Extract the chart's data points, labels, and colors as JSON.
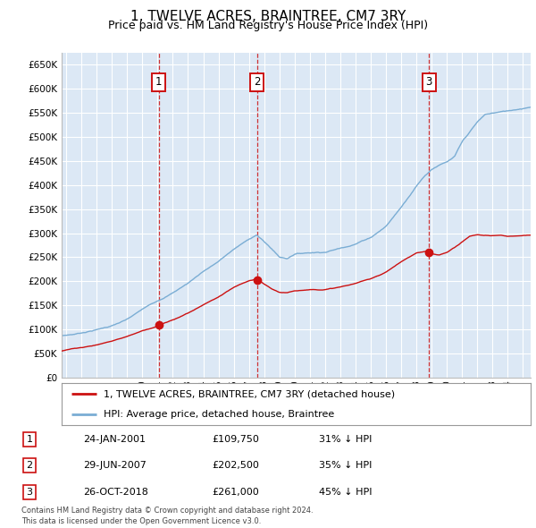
{
  "title": "1, TWELVE ACRES, BRAINTREE, CM7 3RY",
  "subtitle": "Price paid vs. HM Land Registry's House Price Index (HPI)",
  "title_fontsize": 11,
  "subtitle_fontsize": 9,
  "background_color": "#ffffff",
  "plot_bg_color": "#dce8f5",
  "grid_color": "#ffffff",
  "hpi_color": "#7aadd4",
  "price_color": "#cc1111",
  "sale1_year": 2001.07,
  "sale1_price": 109750,
  "sale2_year": 2007.54,
  "sale2_price": 202500,
  "sale3_year": 2018.82,
  "sale3_price": 261000,
  "legend_line1": "1, TWELVE ACRES, BRAINTREE, CM7 3RY (detached house)",
  "legend_line2": "HPI: Average price, detached house, Braintree",
  "table_rows": [
    [
      "1",
      "24-JAN-2001",
      "£109,750",
      "31% ↓ HPI"
    ],
    [
      "2",
      "29-JUN-2007",
      "£202,500",
      "35% ↓ HPI"
    ],
    [
      "3",
      "26-OCT-2018",
      "£261,000",
      "45% ↓ HPI"
    ]
  ],
  "footer": "Contains HM Land Registry data © Crown copyright and database right 2024.\nThis data is licensed under the Open Government Licence v3.0.",
  "ytick_values": [
    0,
    50000,
    100000,
    150000,
    200000,
    250000,
    300000,
    350000,
    400000,
    450000,
    500000,
    550000,
    600000,
    650000
  ],
  "ylabel_ticks": [
    "£0",
    "£50K",
    "£100K",
    "£150K",
    "£200K",
    "£250K",
    "£300K",
    "£350K",
    "£400K",
    "£450K",
    "£500K",
    "£550K",
    "£600K",
    "£650K"
  ],
  "ylim": [
    0,
    675000
  ],
  "xlim_start": 1994.7,
  "xlim_end": 2025.5,
  "hpi_knots_x": [
    1994.7,
    1995.5,
    1996,
    1997,
    1998,
    1999,
    2000,
    2001,
    2002,
    2003,
    2004,
    2005,
    2006,
    2007,
    2007.5,
    2008,
    2008.5,
    2009,
    2009.5,
    2010,
    2011,
    2012,
    2013,
    2014,
    2015,
    2016,
    2017,
    2018,
    2018.5,
    2019,
    2019.5,
    2020,
    2020.5,
    2021,
    2021.5,
    2022,
    2022.5,
    2023,
    2023.5,
    2024,
    2024.5,
    2025,
    2025.5
  ],
  "hpi_knots_y": [
    87000,
    90000,
    93000,
    100000,
    108000,
    120000,
    140000,
    158000,
    175000,
    195000,
    220000,
    240000,
    265000,
    285000,
    295000,
    280000,
    265000,
    248000,
    245000,
    255000,
    258000,
    260000,
    268000,
    278000,
    292000,
    315000,
    355000,
    400000,
    420000,
    435000,
    445000,
    450000,
    460000,
    490000,
    510000,
    530000,
    545000,
    548000,
    550000,
    552000,
    555000,
    558000,
    562000
  ],
  "price_knots_x": [
    1994.7,
    1995,
    1996,
    1997,
    1998,
    1999,
    2000,
    2001,
    2001.07,
    2002,
    2003,
    2004,
    2005,
    2006,
    2007,
    2007.54,
    2008,
    2008.5,
    2009,
    2009.5,
    2010,
    2011,
    2012,
    2013,
    2014,
    2015,
    2016,
    2017,
    2018,
    2018.82,
    2019,
    2019.5,
    2020,
    2020.5,
    2021,
    2021.5,
    2022,
    2022.5,
    2023,
    2023.5,
    2024,
    2024.5,
    2025,
    2025.5
  ],
  "price_knots_y": [
    55000,
    57000,
    62000,
    68000,
    76000,
    86000,
    98000,
    108000,
    109750,
    120000,
    135000,
    152000,
    168000,
    187000,
    200000,
    202500,
    192000,
    182000,
    175000,
    173000,
    178000,
    181000,
    182000,
    187000,
    194000,
    204000,
    218000,
    240000,
    258000,
    261000,
    255000,
    252000,
    258000,
    268000,
    280000,
    292000,
    295000,
    294000,
    293000,
    294000,
    292000,
    293000,
    295000,
    296000
  ]
}
